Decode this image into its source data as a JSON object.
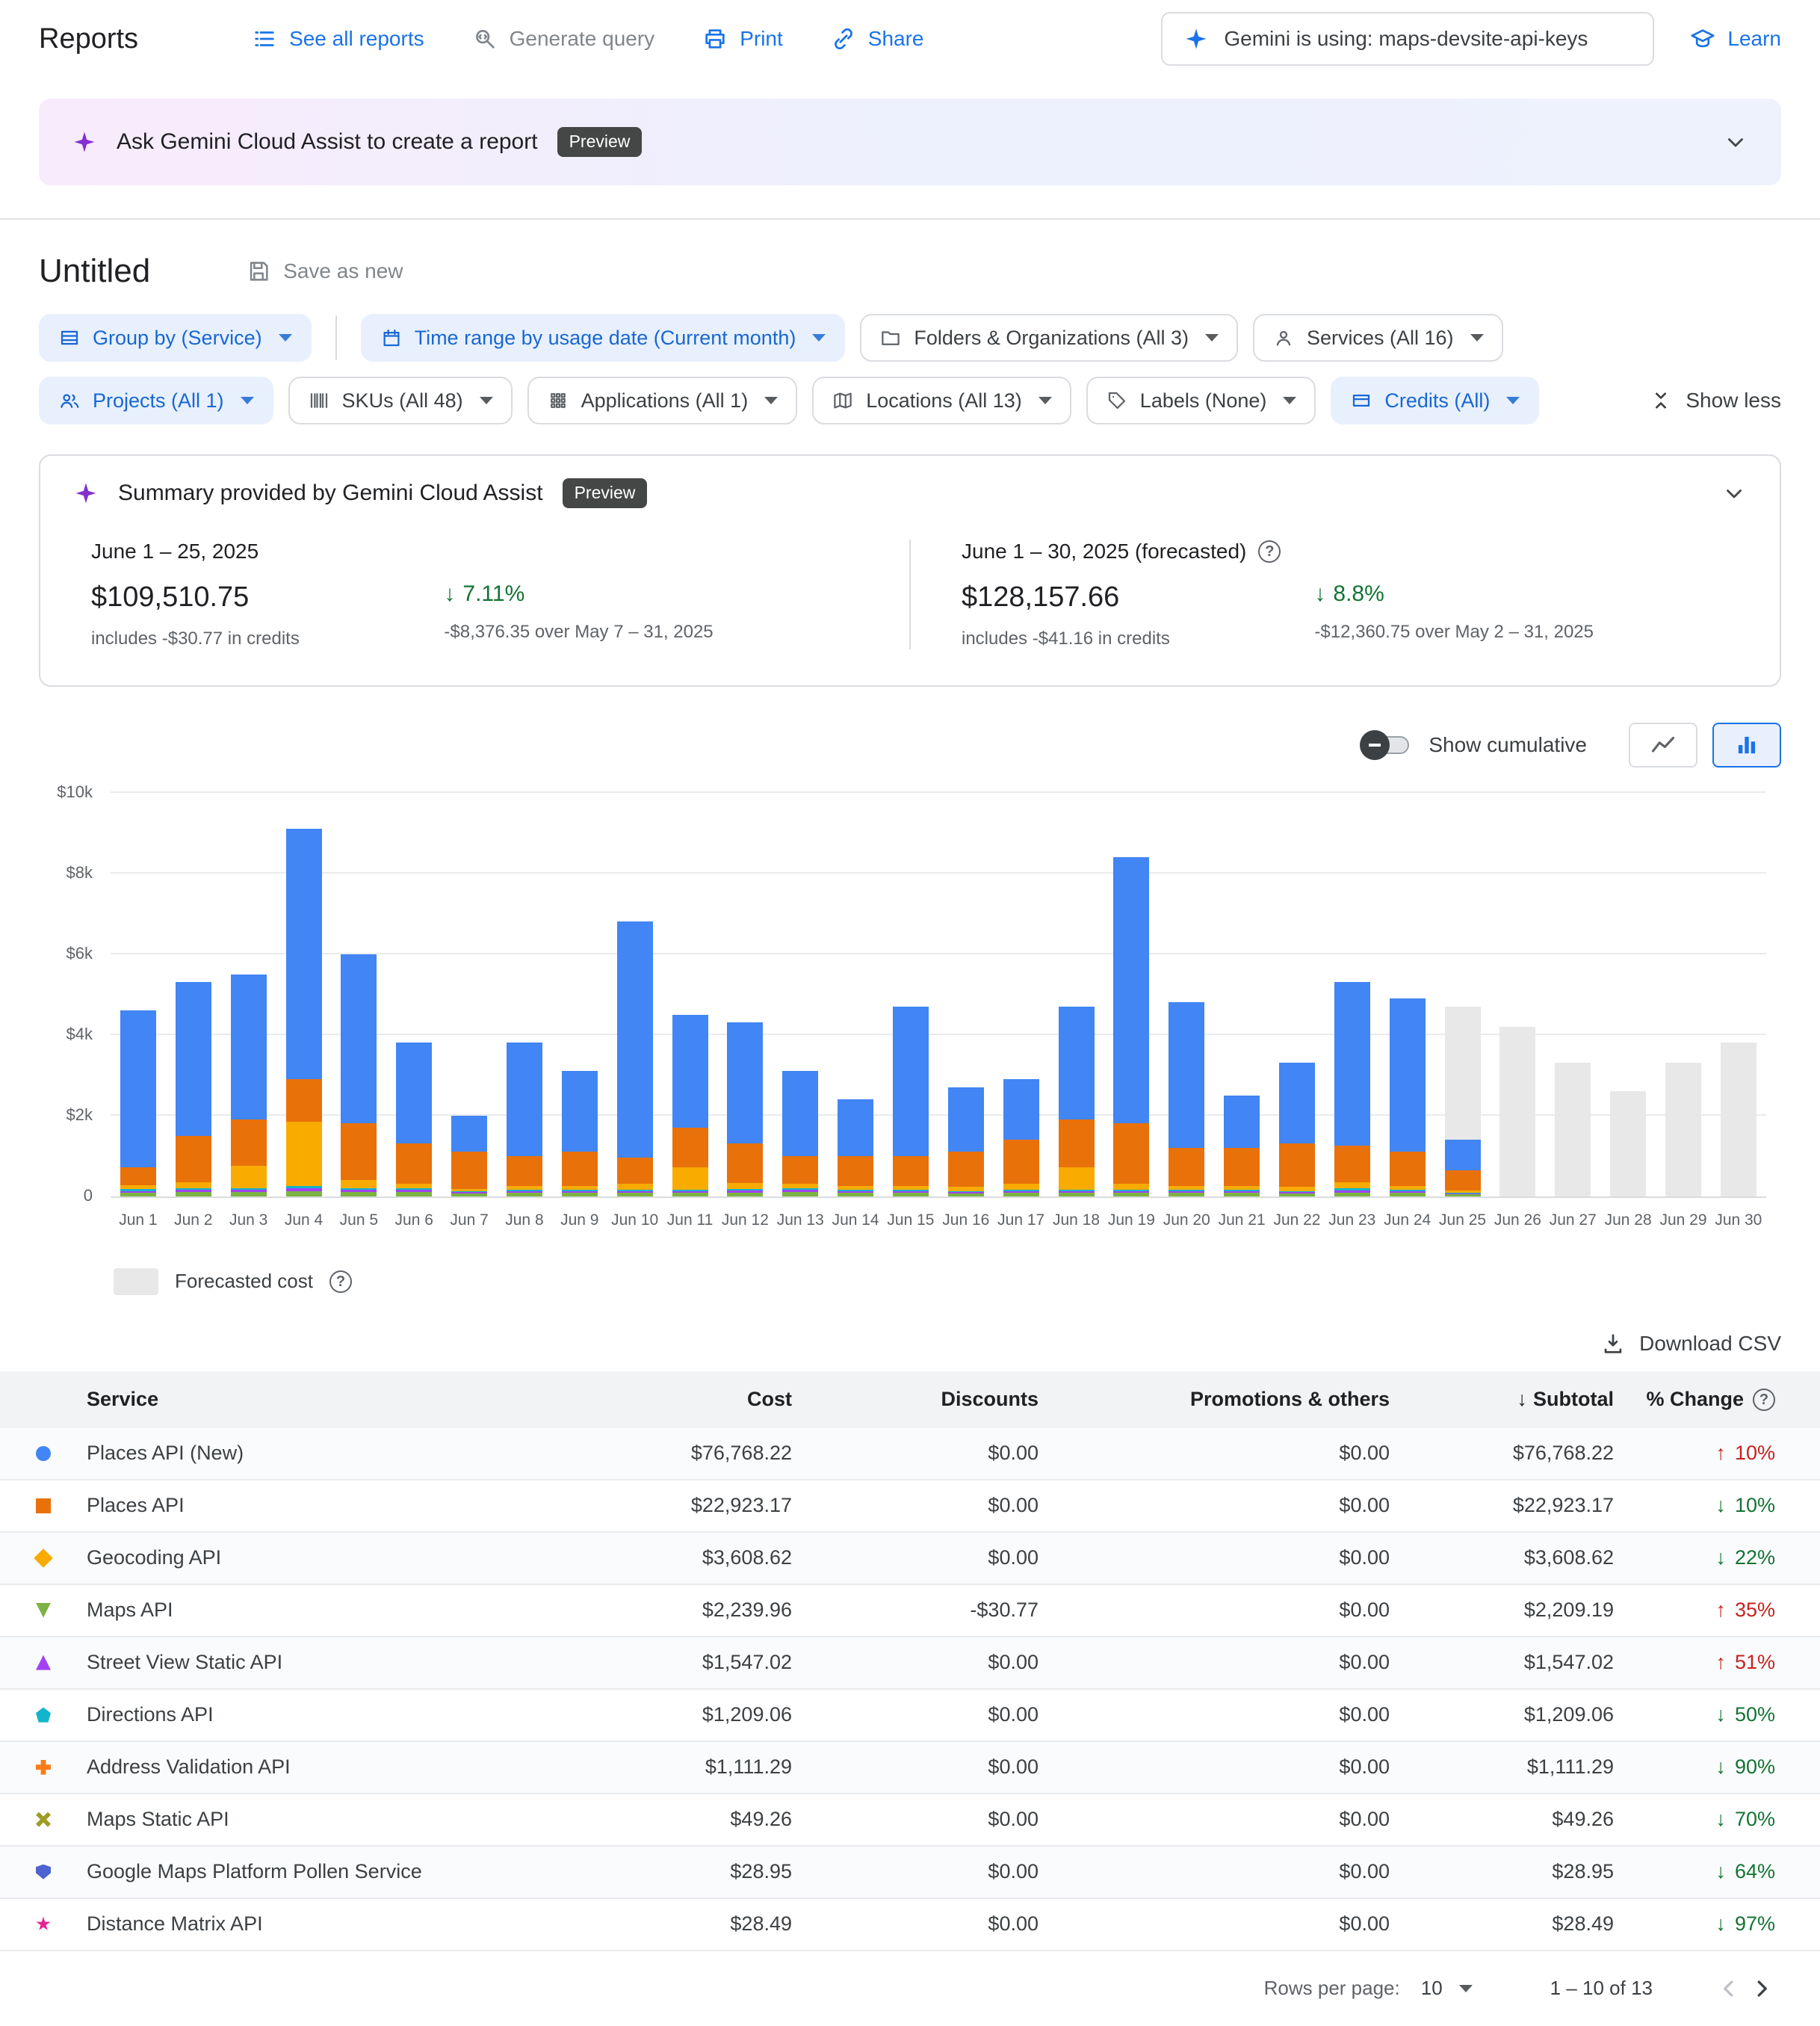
{
  "header": {
    "title": "Reports",
    "links": {
      "see_all_reports": "See all reports",
      "generate_query": "Generate query",
      "print": "Print",
      "share": "Share",
      "learn": "Learn"
    },
    "gemini_usage": "Gemini is using: maps-devsite-api-keys"
  },
  "banner": {
    "text": "Ask Gemini Cloud Assist to create a report",
    "badge": "Preview"
  },
  "report": {
    "title": "Untitled",
    "save_as_new": "Save as new"
  },
  "filters": {
    "row1": [
      {
        "id": "group-by",
        "label": "Group by (Service)",
        "icon": "group",
        "active": true,
        "divider_after": true
      },
      {
        "id": "time-range",
        "label": "Time range by usage date (Current month)",
        "icon": "calendar",
        "active": true
      },
      {
        "id": "folders-organizations",
        "label": "Folders & Organizations (All 3)",
        "icon": "folder",
        "active": false
      },
      {
        "id": "services",
        "label": "Services (All 16)",
        "icon": "person",
        "active": false
      }
    ],
    "row2": [
      {
        "id": "projects",
        "label": "Projects (All 1)",
        "icon": "people",
        "active": true
      },
      {
        "id": "skus",
        "label": "SKUs (All 48)",
        "icon": "barcode",
        "active": false
      },
      {
        "id": "applications",
        "label": "Applications (All 1)",
        "icon": "grid",
        "active": false
      },
      {
        "id": "locations",
        "label": "Locations (All 13)",
        "icon": "map",
        "active": false
      },
      {
        "id": "labels",
        "label": "Labels (None)",
        "icon": "tag",
        "active": false
      },
      {
        "id": "credits",
        "label": "Credits (All)",
        "icon": "card",
        "active": true
      }
    ],
    "show_less": "Show less"
  },
  "summary": {
    "title": "Summary provided by Gemini Cloud Assist",
    "badge": "Preview",
    "current": {
      "period": "June 1 – 25, 2025",
      "amount": "$109,510.75",
      "credits": "includes -$30.77 in credits",
      "change_pct": "7.11%",
      "change_note": "-$8,376.35 over May 7 – 31, 2025"
    },
    "forecast": {
      "period": "June 1 – 30, 2025 (forecasted)",
      "amount": "$128,157.66",
      "credits": "includes -$41.16 in credits",
      "change_pct": "8.8%",
      "change_note": "-$12,360.75 over May 2 – 31, 2025"
    }
  },
  "chart_controls": {
    "show_cumulative": "Show cumulative"
  },
  "chart_data": {
    "type": "bar",
    "stacked": true,
    "unit": "USD thousands per day",
    "ylim": [
      0,
      10
    ],
    "yticks": [
      "0",
      "$2k",
      "$4k",
      "$6k",
      "$8k",
      "$10k"
    ],
    "series": [
      {
        "name": "Maps API",
        "color": "#7cb342"
      },
      {
        "name": "Street View Static API",
        "color": "#a142f4"
      },
      {
        "name": "Directions API",
        "color": "#12b5cb"
      },
      {
        "name": "Geocoding API",
        "color": "#f9ab00"
      },
      {
        "name": "Places API",
        "color": "#e8710a"
      },
      {
        "name": "Places API (New)",
        "color": "#4285f4"
      },
      {
        "name": "Forecasted cost",
        "color": "#e8e8e8"
      }
    ],
    "bars": [
      {
        "label": "Jun 1",
        "values": [
          0.08,
          0.05,
          0.04,
          0.1,
          0.45,
          3.88,
          0
        ]
      },
      {
        "label": "Jun 2",
        "values": [
          0.1,
          0.06,
          0.04,
          0.15,
          1.15,
          3.8,
          0
        ]
      },
      {
        "label": "Jun 3",
        "values": [
          0.1,
          0.06,
          0.04,
          0.55,
          1.15,
          3.6,
          0
        ]
      },
      {
        "label": "Jun 4",
        "values": [
          0.12,
          0.08,
          0.05,
          1.6,
          1.05,
          6.2,
          0
        ]
      },
      {
        "label": "Jun 5",
        "values": [
          0.1,
          0.06,
          0.04,
          0.2,
          1.4,
          4.2,
          0
        ]
      },
      {
        "label": "Jun 6",
        "values": [
          0.1,
          0.06,
          0.04,
          0.1,
          1.0,
          2.5,
          0
        ]
      },
      {
        "label": "Jun 7",
        "values": [
          0.06,
          0.04,
          0.03,
          0.05,
          0.92,
          0.9,
          0
        ]
      },
      {
        "label": "Jun 8",
        "values": [
          0.08,
          0.05,
          0.03,
          0.1,
          0.74,
          2.8,
          0
        ]
      },
      {
        "label": "Jun 9",
        "values": [
          0.08,
          0.05,
          0.03,
          0.1,
          0.84,
          2.0,
          0
        ]
      },
      {
        "label": "Jun 10",
        "values": [
          0.08,
          0.05,
          0.03,
          0.15,
          0.64,
          5.85,
          0
        ]
      },
      {
        "label": "Jun 11",
        "values": [
          0.08,
          0.05,
          0.03,
          0.55,
          0.99,
          2.8,
          0
        ]
      },
      {
        "label": "Jun 12",
        "values": [
          0.09,
          0.05,
          0.03,
          0.15,
          0.98,
          3.0,
          0
        ]
      },
      {
        "label": "Jun 13",
        "values": [
          0.1,
          0.06,
          0.04,
          0.1,
          0.7,
          2.1,
          0
        ]
      },
      {
        "label": "Jun 14",
        "values": [
          0.08,
          0.05,
          0.03,
          0.1,
          0.74,
          1.4,
          0
        ]
      },
      {
        "label": "Jun 15",
        "values": [
          0.08,
          0.05,
          0.03,
          0.1,
          0.74,
          3.7,
          0
        ]
      },
      {
        "label": "Jun 16",
        "values": [
          0.06,
          0.04,
          0.03,
          0.1,
          0.87,
          1.6,
          0
        ]
      },
      {
        "label": "Jun 17",
        "values": [
          0.08,
          0.05,
          0.03,
          0.15,
          1.09,
          1.5,
          0
        ]
      },
      {
        "label": "Jun 18",
        "values": [
          0.08,
          0.05,
          0.03,
          0.55,
          1.19,
          2.8,
          0
        ]
      },
      {
        "label": "Jun 19",
        "values": [
          0.08,
          0.05,
          0.03,
          0.15,
          1.49,
          6.6,
          0
        ]
      },
      {
        "label": "Jun 20",
        "values": [
          0.08,
          0.05,
          0.03,
          0.1,
          0.94,
          3.6,
          0
        ]
      },
      {
        "label": "Jun 21",
        "values": [
          0.08,
          0.05,
          0.03,
          0.1,
          0.94,
          1.3,
          0
        ]
      },
      {
        "label": "Jun 22",
        "values": [
          0.06,
          0.04,
          0.03,
          0.1,
          1.07,
          2.0,
          0
        ]
      },
      {
        "label": "Jun 23",
        "values": [
          0.09,
          0.06,
          0.04,
          0.15,
          0.91,
          4.05,
          0
        ]
      },
      {
        "label": "Jun 24",
        "values": [
          0.08,
          0.05,
          0.03,
          0.1,
          0.84,
          3.8,
          0
        ]
      },
      {
        "label": "Jun 25",
        "values": [
          0.04,
          0.03,
          0.02,
          0.05,
          0.51,
          0.75,
          3.3
        ]
      },
      {
        "label": "Jun 26",
        "values": [
          0,
          0,
          0,
          0,
          0,
          0,
          4.2
        ]
      },
      {
        "label": "Jun 27",
        "values": [
          0,
          0,
          0,
          0,
          0,
          0,
          3.3
        ]
      },
      {
        "label": "Jun 28",
        "values": [
          0,
          0,
          0,
          0,
          0,
          0,
          2.6
        ]
      },
      {
        "label": "Jun 29",
        "values": [
          0,
          0,
          0,
          0,
          0,
          0,
          3.3
        ]
      },
      {
        "label": "Jun 30",
        "values": [
          0,
          0,
          0,
          0,
          0,
          0,
          3.8
        ]
      }
    ]
  },
  "legend": {
    "forecast": "Forecasted cost"
  },
  "table": {
    "download_csv": "Download CSV",
    "columns": [
      "Service",
      "Cost",
      "Discounts",
      "Promotions & others",
      "Subtotal",
      "% Change"
    ],
    "rows": [
      {
        "service": "Places API (New)",
        "marker": {
          "shape": "circle",
          "color": "#4285f4"
        },
        "cost": "$76,768.22",
        "discounts": "$0.00",
        "promotions": "$0.00",
        "subtotal": "$76,768.22",
        "change": "10%",
        "direction": "up"
      },
      {
        "service": "Places API",
        "marker": {
          "shape": "square",
          "color": "#e8710a"
        },
        "cost": "$22,923.17",
        "discounts": "$0.00",
        "promotions": "$0.00",
        "subtotal": "$22,923.17",
        "change": "10%",
        "direction": "down"
      },
      {
        "service": "Geocoding API",
        "marker": {
          "shape": "diamond",
          "color": "#f9ab00"
        },
        "cost": "$3,608.62",
        "discounts": "$0.00",
        "promotions": "$0.00",
        "subtotal": "$3,608.62",
        "change": "22%",
        "direction": "down"
      },
      {
        "service": "Maps API",
        "marker": {
          "shape": "triangle-down",
          "color": "#7cb342"
        },
        "cost": "$2,239.96",
        "discounts": "-$30.77",
        "promotions": "$0.00",
        "subtotal": "$2,209.19",
        "change": "35%",
        "direction": "up"
      },
      {
        "service": "Street View Static API",
        "marker": {
          "shape": "triangle-up",
          "color": "#a142f4"
        },
        "cost": "$1,547.02",
        "discounts": "$0.00",
        "promotions": "$0.00",
        "subtotal": "$1,547.02",
        "change": "51%",
        "direction": "up"
      },
      {
        "service": "Directions API",
        "marker": {
          "shape": "pentagon",
          "color": "#12b5cb"
        },
        "cost": "$1,209.06",
        "discounts": "$0.00",
        "promotions": "$0.00",
        "subtotal": "$1,209.06",
        "change": "50%",
        "direction": "down"
      },
      {
        "service": "Address Validation API",
        "marker": {
          "shape": "plus",
          "color": "#fa7b17"
        },
        "cost": "$1,111.29",
        "discounts": "$0.00",
        "promotions": "$0.00",
        "subtotal": "$1,111.29",
        "change": "90%",
        "direction": "down"
      },
      {
        "service": "Maps Static API",
        "marker": {
          "shape": "x",
          "color": "#9e9d24"
        },
        "cost": "$49.26",
        "discounts": "$0.00",
        "promotions": "$0.00",
        "subtotal": "$49.26",
        "change": "70%",
        "direction": "down"
      },
      {
        "service": "Google Maps Platform Pollen Service",
        "marker": {
          "shape": "shield",
          "color": "#4d63cf"
        },
        "cost": "$28.95",
        "discounts": "$0.00",
        "promotions": "$0.00",
        "subtotal": "$28.95",
        "change": "64%",
        "direction": "down"
      },
      {
        "service": "Distance Matrix API",
        "marker": {
          "shape": "star",
          "color": "#e52592"
        },
        "cost": "$28.49",
        "discounts": "$0.00",
        "promotions": "$0.00",
        "subtotal": "$28.49",
        "change": "97%",
        "direction": "down"
      }
    ]
  },
  "pagination": {
    "rows_per_page_label": "Rows per page:",
    "rows_per_page_value": "10",
    "range": "1 – 10 of 13"
  }
}
